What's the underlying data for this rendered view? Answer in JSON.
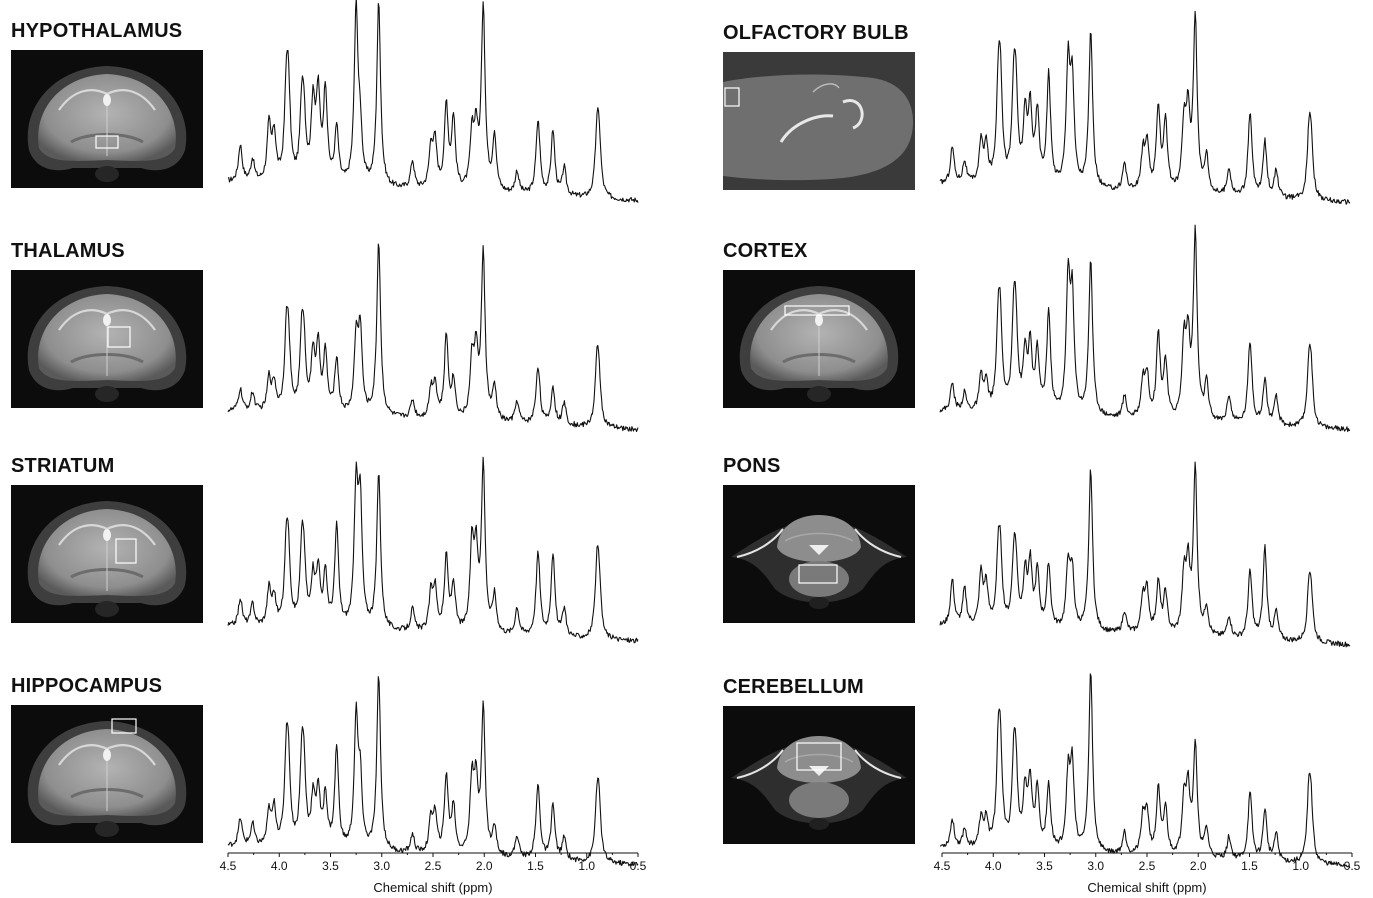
{
  "colors": {
    "line": "#111111",
    "mri_bg": "#0c0c0c",
    "roi_box": "#ffffff"
  },
  "panels": [
    {
      "title": "HYPOTHALAMUS",
      "view": "coronal-forebrain",
      "roi_region": "hypothalamus"
    },
    {
      "title": "THALAMUS",
      "view": "coronal-forebrain",
      "roi_region": "thalamus"
    },
    {
      "title": "STRIATUM",
      "view": "coronal-forebrain",
      "roi_region": "striatum"
    },
    {
      "title": "HIPPOCAMPUS",
      "view": "coronal-forebrain",
      "roi_region": "hippocampus"
    },
    {
      "title": "OLFACTORY BULB",
      "view": "sagittal",
      "roi_region": "olfactory bulb"
    },
    {
      "title": "CORTEX",
      "view": "coronal-forebrain",
      "roi_region": "cortex"
    },
    {
      "title": "PONS",
      "view": "coronal-hindbrain",
      "roi_region": "pons"
    },
    {
      "title": "CEREBELLUM",
      "view": "coronal-hindbrain",
      "roi_region": "cerebellum"
    }
  ],
  "chart_data": {
    "type": "line",
    "xlabel": "Chemical shift (ppm)",
    "xlim": [
      4.5,
      0.5
    ],
    "x_reversed": true,
    "xticks": [
      "4.5",
      "4.0",
      "3.5",
      "3.0",
      "2.5",
      "2.0",
      "1.5",
      "1.0",
      "0.5"
    ],
    "y_axis_shown": false,
    "peak_ppm": [
      4.38,
      4.26,
      4.1,
      4.05,
      3.93,
      3.91,
      3.78,
      3.76,
      3.67,
      3.62,
      3.55,
      3.44,
      3.25,
      3.21,
      3.03,
      2.7,
      2.52,
      2.48,
      2.37,
      2.3,
      2.12,
      2.08,
      2.01,
      1.9,
      1.68,
      1.48,
      1.47,
      1.33,
      1.22,
      0.9,
      0.88
    ],
    "series": [
      {
        "region": "HYPOTHALAMUS",
        "baseline": [
          0.15,
          0.05
        ],
        "peak_heights": [
          0.2,
          0.12,
          0.3,
          0.25,
          0.45,
          0.4,
          0.35,
          0.3,
          0.42,
          0.46,
          0.5,
          0.3,
          0.95,
          0.25,
          1.0,
          0.15,
          0.22,
          0.24,
          0.45,
          0.38,
          0.28,
          0.3,
          1.0,
          0.3,
          0.12,
          0.22,
          0.2,
          0.35,
          0.15,
          0.3,
          0.28
        ]
      },
      {
        "region": "THALAMUS",
        "baseline": [
          0.1,
          0.0
        ],
        "peak_heights": [
          0.12,
          0.1,
          0.18,
          0.15,
          0.38,
          0.3,
          0.35,
          0.3,
          0.3,
          0.34,
          0.32,
          0.3,
          0.4,
          0.45,
          0.95,
          0.1,
          0.15,
          0.18,
          0.45,
          0.2,
          0.3,
          0.35,
          0.9,
          0.18,
          0.12,
          0.18,
          0.15,
          0.2,
          0.12,
          0.32,
          0.2
        ]
      },
      {
        "region": "STRIATUM",
        "baseline": [
          0.1,
          0.02
        ],
        "peak_heights": [
          0.15,
          0.12,
          0.2,
          0.15,
          0.4,
          0.3,
          0.35,
          0.3,
          0.25,
          0.3,
          0.28,
          0.55,
          0.75,
          0.65,
          0.85,
          0.12,
          0.2,
          0.22,
          0.4,
          0.25,
          0.45,
          0.4,
          0.9,
          0.2,
          0.15,
          0.25,
          0.22,
          0.45,
          0.15,
          0.35,
          0.25
        ]
      },
      {
        "region": "HIPPOCAMPUS",
        "baseline": [
          0.1,
          0.0
        ],
        "peak_heights": [
          0.15,
          0.12,
          0.18,
          0.2,
          0.45,
          0.35,
          0.4,
          0.35,
          0.25,
          0.3,
          0.28,
          0.55,
          0.7,
          0.35,
          0.95,
          0.1,
          0.18,
          0.2,
          0.42,
          0.25,
          0.4,
          0.35,
          0.8,
          0.15,
          0.12,
          0.22,
          0.2,
          0.3,
          0.12,
          0.3,
          0.25
        ]
      },
      {
        "region": "OLFACTORY BULB",
        "baseline": [
          0.15,
          0.05
        ],
        "peak_heights": [
          0.2,
          0.12,
          0.22,
          0.2,
          0.48,
          0.45,
          0.45,
          0.4,
          0.35,
          0.4,
          0.38,
          0.6,
          0.65,
          0.55,
          0.85,
          0.15,
          0.2,
          0.24,
          0.45,
          0.38,
          0.35,
          0.4,
          0.95,
          0.2,
          0.15,
          0.25,
          0.22,
          0.3,
          0.15,
          0.3,
          0.28
        ]
      },
      {
        "region": "CORTEX",
        "baseline": [
          0.1,
          0.0
        ],
        "peak_heights": [
          0.15,
          0.1,
          0.18,
          0.15,
          0.45,
          0.35,
          0.45,
          0.38,
          0.3,
          0.34,
          0.32,
          0.55,
          0.7,
          0.6,
          0.85,
          0.12,
          0.2,
          0.22,
          0.45,
          0.3,
          0.4,
          0.4,
          1.0,
          0.2,
          0.15,
          0.25,
          0.22,
          0.25,
          0.15,
          0.3,
          0.25
        ]
      },
      {
        "region": "PONS",
        "baseline": [
          0.1,
          0.0
        ],
        "peak_heights": [
          0.25,
          0.2,
          0.28,
          0.22,
          0.35,
          0.3,
          0.3,
          0.28,
          0.28,
          0.33,
          0.3,
          0.35,
          0.35,
          0.3,
          0.88,
          0.12,
          0.2,
          0.22,
          0.28,
          0.22,
          0.3,
          0.35,
          0.9,
          0.15,
          0.12,
          0.2,
          0.18,
          0.5,
          0.15,
          0.25,
          0.22
        ]
      },
      {
        "region": "CEREBELLUM",
        "baseline": [
          0.1,
          0.0
        ],
        "peak_heights": [
          0.15,
          0.1,
          0.15,
          0.15,
          0.5,
          0.4,
          0.4,
          0.35,
          0.3,
          0.35,
          0.32,
          0.35,
          0.4,
          0.45,
          0.98,
          0.12,
          0.2,
          0.22,
          0.35,
          0.25,
          0.3,
          0.35,
          0.6,
          0.15,
          0.12,
          0.2,
          0.18,
          0.28,
          0.15,
          0.35,
          0.25
        ]
      }
    ]
  }
}
